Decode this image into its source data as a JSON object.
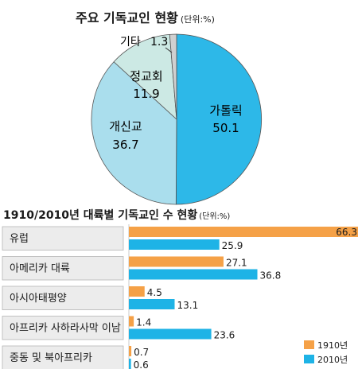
{
  "colors": {
    "year1910": "#f5a147",
    "year2010": "#1eb3e6",
    "catholic": "#2db8e8",
    "protestant": "#aadeed",
    "orthodox": "#cce9e4",
    "other": "#d0d0d0",
    "label_bg": "#ececec"
  },
  "chart_data": [
    {
      "type": "pie",
      "title": "주요 기독교인 현황",
      "unit": "(단위:%)",
      "slices": [
        {
          "name": "가톨릭",
          "value": 50.1,
          "value_label": "50.1"
        },
        {
          "name": "개신교",
          "value": 36.7,
          "value_label": "36.7"
        },
        {
          "name": "정교회",
          "value": 11.9,
          "value_label": "11.9"
        },
        {
          "name": "기타",
          "value": 1.3,
          "value_label": "1.3"
        }
      ]
    },
    {
      "type": "bar",
      "orientation": "horizontal",
      "title": "1910/2010년 대륙별 기독교인 수 현황",
      "unit": "(단위:%)",
      "categories": [
        "유럽",
        "아메리카 대륙",
        "아시아태평양",
        "아프리카 사하라사막 이남",
        "중동 및 북아프리카"
      ],
      "series": [
        {
          "name": "1910년",
          "values": [
            66.3,
            27.1,
            4.5,
            1.4,
            0.7
          ]
        },
        {
          "name": "2010년",
          "values": [
            25.9,
            36.8,
            13.1,
            23.6,
            0.6
          ]
        }
      ],
      "xlim": [
        0,
        66.3
      ],
      "legend_position": "bottom-right"
    }
  ]
}
